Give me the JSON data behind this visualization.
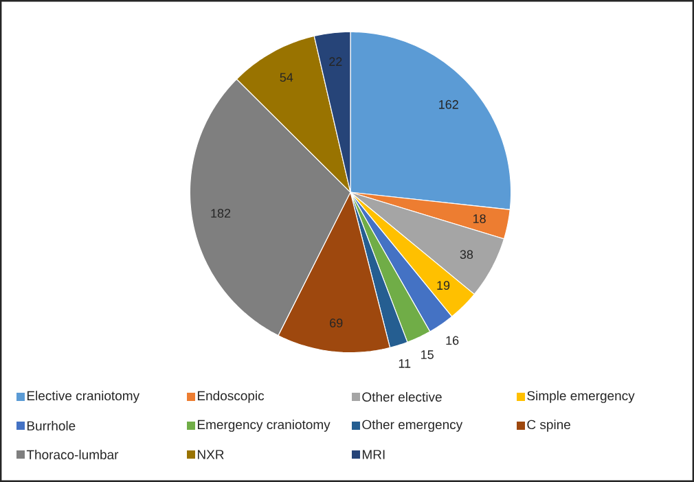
{
  "chart_data": {
    "type": "pie",
    "categories": [
      "Elective craniotomy",
      "Endoscopic",
      "Other elective",
      "Simple emergency",
      "Burrhole",
      "Emergency craniotomy",
      "Other emergency",
      "C spine",
      "Thoraco-lumbar",
      "NXR",
      "MRI"
    ],
    "values": [
      162,
      18,
      38,
      19,
      16,
      15,
      11,
      69,
      182,
      54,
      22
    ],
    "colors": [
      "#5b9bd5",
      "#ed7d31",
      "#a5a5a5",
      "#ffc000",
      "#4472c4",
      "#70ad47",
      "#255e91",
      "#9e480e",
      "#7f7f7f",
      "#997300",
      "#264478"
    ],
    "data_labels": true,
    "legend": "bottom"
  }
}
